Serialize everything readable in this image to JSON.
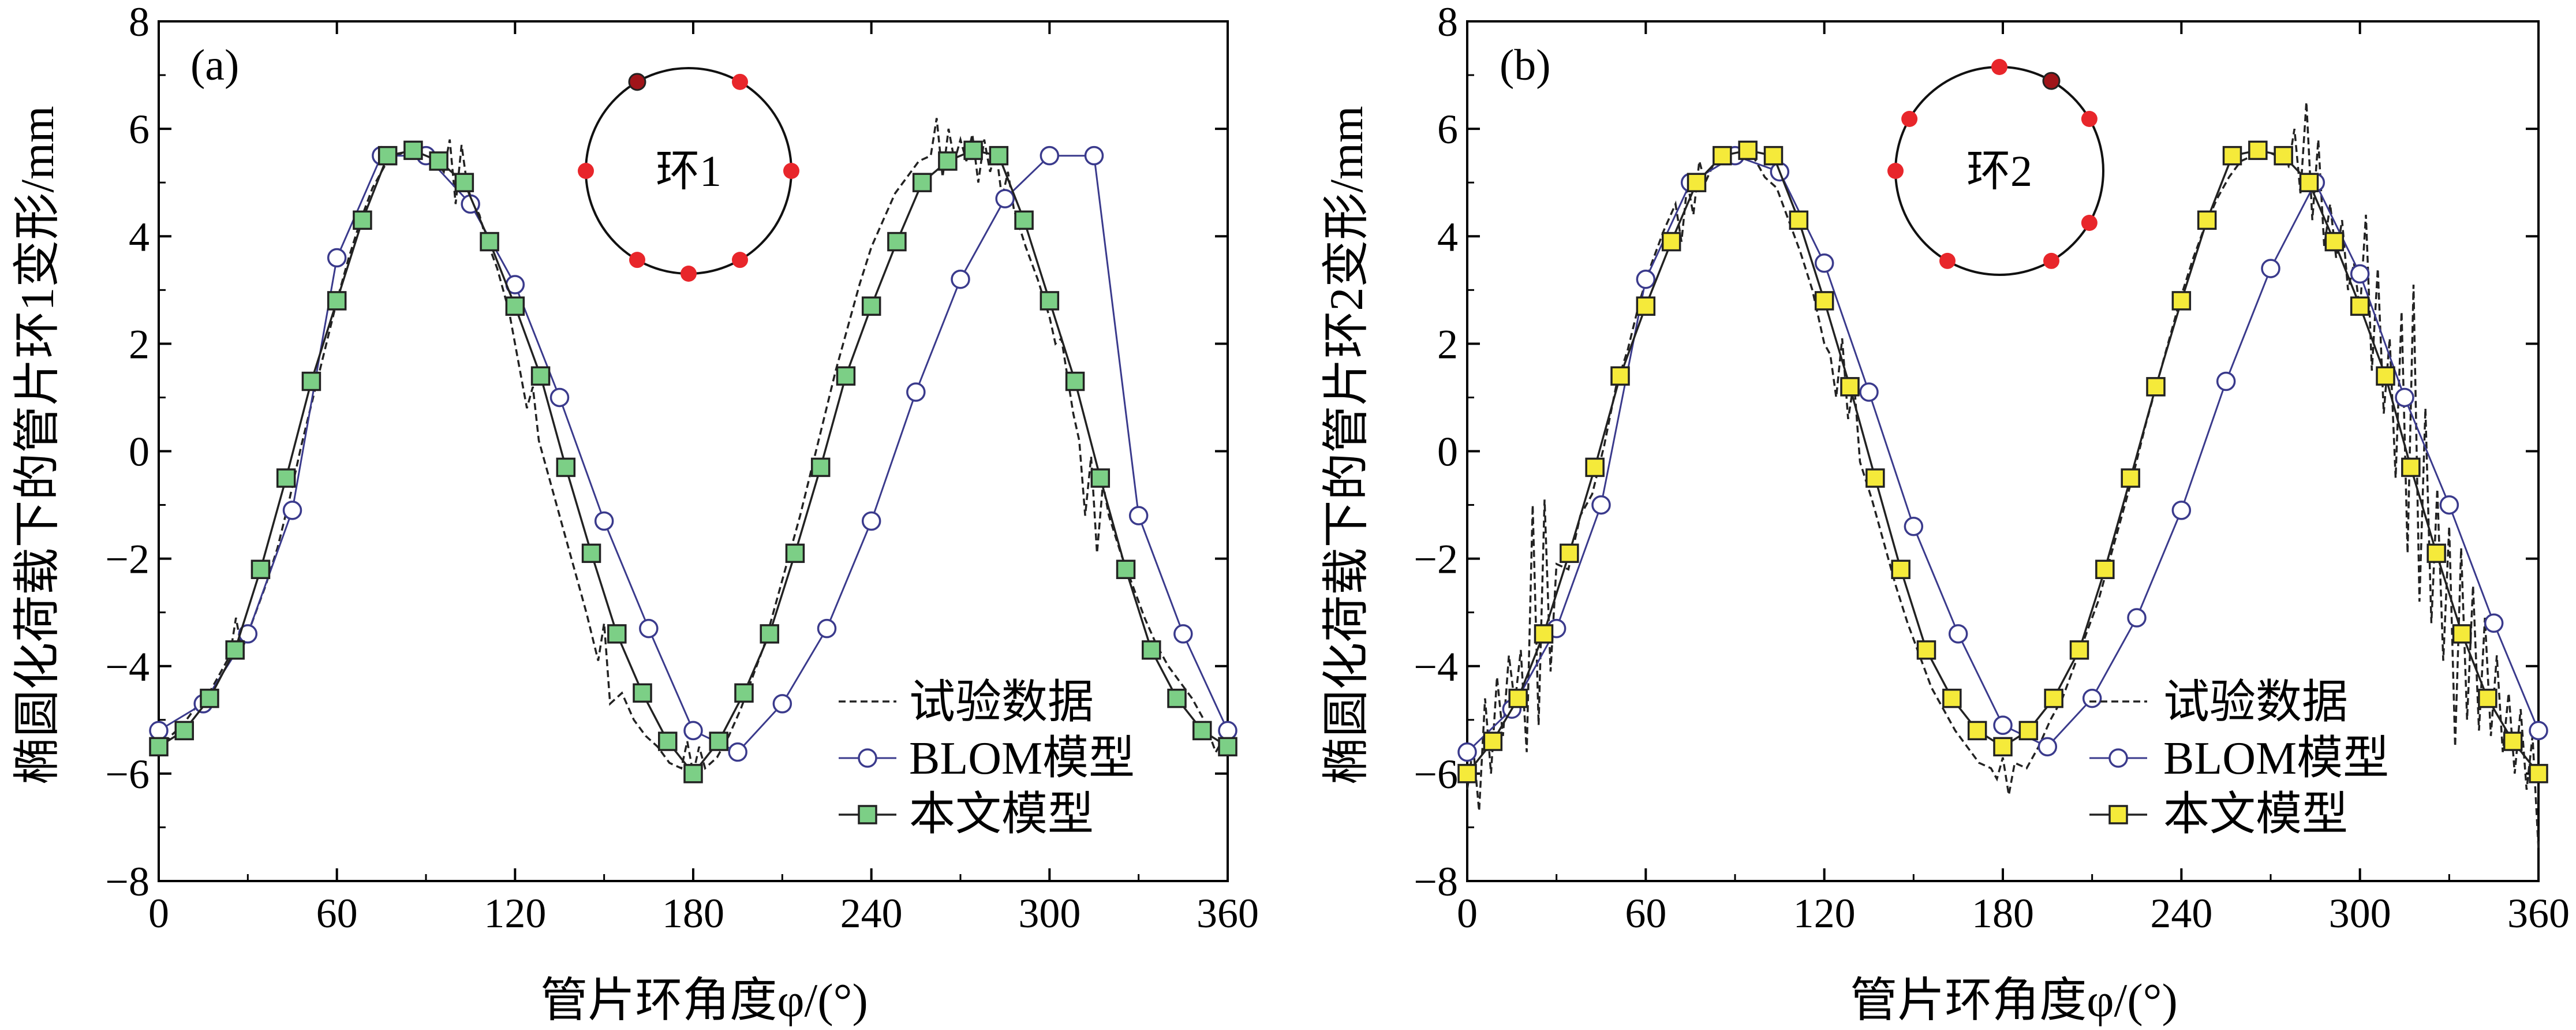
{
  "chart_data": [
    {
      "type": "line",
      "panel_label": "(a)",
      "xlabel": "管片环角度φ/(°)",
      "ylabel": "椭圆化荷载下的管片环1变形/mm",
      "xlim": [
        0,
        360
      ],
      "ylim": [
        -8,
        8
      ],
      "xticks": [
        0,
        60,
        120,
        180,
        240,
        300,
        360
      ],
      "yticks": [
        -8,
        -6,
        -4,
        -2,
        0,
        2,
        4,
        6,
        8
      ],
      "xtick_labels": [
        "0",
        "60",
        "120",
        "180",
        "240",
        "300",
        "360"
      ],
      "ytick_labels": [
        "−8",
        "−6",
        "−4",
        "−2",
        "0",
        "2",
        "4",
        "6",
        "8"
      ],
      "inset": {
        "label": "环1",
        "marker_color": "#e8262b",
        "highlight_color": "#a01419"
      },
      "legend": [
        "试验数据",
        "BLOM模型",
        "本文模型"
      ],
      "series": [
        {
          "name": "试验数据",
          "style": "dashed",
          "x": [
            0,
            4,
            8,
            12,
            16,
            20,
            24,
            26,
            28,
            32,
            36,
            40,
            44,
            48,
            52,
            56,
            60,
            64,
            68,
            72,
            76,
            80,
            84,
            88,
            92,
            96,
            98,
            100,
            102,
            104,
            106,
            108,
            110,
            114,
            118,
            122,
            124,
            126,
            128,
            132,
            136,
            140,
            144,
            148,
            150,
            152,
            156,
            160,
            164,
            168,
            172,
            176,
            178,
            180,
            182,
            184,
            188,
            192,
            196,
            200,
            204,
            208,
            212,
            216,
            220,
            224,
            228,
            232,
            236,
            240,
            244,
            248,
            252,
            256,
            260,
            262,
            264,
            266,
            268,
            270,
            272,
            274,
            276,
            278,
            280,
            282,
            284,
            286,
            288,
            292,
            296,
            300,
            302,
            304,
            306,
            308,
            310,
            312,
            314,
            316,
            318,
            320,
            324,
            328,
            332,
            336,
            340,
            344,
            348,
            352,
            356,
            360
          ],
          "values": [
            -5.6,
            -5.3,
            -5.1,
            -4.8,
            -4.6,
            -4.2,
            -3.8,
            -3.1,
            -3.7,
            -3.1,
            -2.5,
            -1.8,
            -0.9,
            0.1,
            1.0,
            1.9,
            2.8,
            3.6,
            4.3,
            4.9,
            5.3,
            5.5,
            5.6,
            5.6,
            5.5,
            5.2,
            5.8,
            4.6,
            5.7,
            4.9,
            4.6,
            4.4,
            4.0,
            3.4,
            2.6,
            1.4,
            0.8,
            1.2,
            0.2,
            -0.6,
            -1.4,
            -2.2,
            -3.0,
            -3.9,
            -3.2,
            -4.7,
            -4.5,
            -5.0,
            -5.3,
            -5.5,
            -5.8,
            -5.9,
            -5.4,
            -6.0,
            -5.5,
            -5.9,
            -5.7,
            -5.3,
            -4.8,
            -4.2,
            -3.6,
            -2.8,
            -2.0,
            -1.2,
            -0.3,
            0.6,
            1.5,
            2.3,
            3.1,
            3.8,
            4.3,
            4.8,
            5.1,
            5.4,
            5.5,
            6.2,
            5.1,
            6.0,
            5.4,
            5.8,
            5.4,
            5.9,
            5.0,
            5.8,
            5.2,
            5.6,
            4.7,
            5.2,
            4.5,
            3.8,
            3.2,
            2.5,
            2.0,
            2.1,
            1.4,
            0.7,
            0.2,
            -1.2,
            -0.1,
            -1.9,
            -0.6,
            -1.2,
            -1.9,
            -2.5,
            -3.1,
            -3.6,
            -4.0,
            -4.3,
            -4.6,
            -5.0,
            -5.6,
            -5.2
          ]
        },
        {
          "name": "BLOM模型",
          "style": "circle",
          "color": "#3a3a8c",
          "x": [
            0,
            15,
            30,
            45,
            60,
            75,
            90,
            105,
            120,
            135,
            150,
            165,
            180,
            195,
            210,
            225,
            240,
            255,
            270,
            285,
            300,
            315,
            330,
            345,
            360
          ],
          "values": [
            -5.2,
            -4.7,
            -3.4,
            -1.1,
            3.6,
            5.5,
            5.5,
            4.6,
            3.1,
            1.0,
            -1.3,
            -3.3,
            -5.2,
            -5.6,
            -4.7,
            -3.3,
            -1.3,
            1.1,
            3.2,
            4.7,
            5.5,
            5.5,
            -1.2,
            -3.4,
            -5.2
          ]
        },
        {
          "name": "本文模型",
          "style": "square",
          "color": "#7ccf86",
          "x": [
            0,
            8.6,
            17.1,
            25.7,
            34.3,
            42.9,
            51.4,
            60,
            68.6,
            77.1,
            85.7,
            94.3,
            102.9,
            111.4,
            120,
            128.6,
            137.1,
            145.7,
            154.3,
            162.9,
            171.4,
            180,
            188.6,
            197.1,
            205.7,
            214.3,
            222.9,
            231.4,
            240,
            248.6,
            257.1,
            265.7,
            274.3,
            282.9,
            291.4,
            300,
            308.6,
            317.1,
            325.7,
            334.3,
            342.9,
            351.4,
            360
          ],
          "values": [
            -5.5,
            -5.2,
            -4.6,
            -3.7,
            -2.2,
            -0.5,
            1.3,
            2.8,
            4.3,
            5.5,
            5.6,
            5.4,
            5.0,
            3.9,
            2.7,
            1.4,
            -0.3,
            -1.9,
            -3.4,
            -4.5,
            -5.4,
            -6.0,
            -5.4,
            -4.5,
            -3.4,
            -1.9,
            -0.3,
            1.4,
            2.7,
            3.9,
            5.0,
            5.4,
            5.6,
            5.5,
            4.3,
            2.8,
            1.3,
            -0.5,
            -2.2,
            -3.7,
            -4.6,
            -5.2,
            -5.5
          ]
        }
      ]
    },
    {
      "type": "line",
      "panel_label": "(b)",
      "xlabel": "管片环角度φ/(°)",
      "ylabel": "椭圆化荷载下的管片环2变形/mm",
      "xlim": [
        0,
        360
      ],
      "ylim": [
        -8,
        8
      ],
      "xticks": [
        0,
        60,
        120,
        180,
        240,
        300,
        360
      ],
      "yticks": [
        -8,
        -6,
        -4,
        -2,
        0,
        2,
        4,
        6,
        8
      ],
      "xtick_labels": [
        "0",
        "60",
        "120",
        "180",
        "240",
        "300",
        "360"
      ],
      "ytick_labels": [
        "−8",
        "−6",
        "−4",
        "−2",
        "0",
        "2",
        "4",
        "6",
        "8"
      ],
      "inset": {
        "label": "环2",
        "marker_color": "#e8262b",
        "highlight_color": "#a01419"
      },
      "legend": [
        "试验数据",
        "BLOM模型",
        "本文模型"
      ],
      "series": [
        {
          "name": "试验数据",
          "style": "dashed",
          "x": [
            0,
            2,
            4,
            6,
            8,
            10,
            12,
            14,
            16,
            18,
            20,
            22,
            24,
            26,
            28,
            30,
            34,
            38,
            42,
            46,
            50,
            54,
            58,
            62,
            66,
            70,
            72,
            74,
            76,
            78,
            80,
            84,
            88,
            92,
            96,
            100,
            104,
            108,
            112,
            116,
            120,
            122,
            124,
            126,
            128,
            130,
            132,
            136,
            140,
            144,
            148,
            152,
            156,
            160,
            164,
            168,
            172,
            176,
            178,
            180,
            182,
            184,
            188,
            192,
            196,
            200,
            204,
            208,
            212,
            216,
            220,
            224,
            228,
            232,
            236,
            240,
            244,
            248,
            252,
            256,
            260,
            264,
            268,
            272,
            276,
            278,
            280,
            282,
            284,
            286,
            288,
            290,
            292,
            294,
            296,
            298,
            300,
            302,
            304,
            306,
            308,
            310,
            312,
            314,
            316,
            318,
            320,
            322,
            324,
            326,
            328,
            330,
            332,
            334,
            336,
            338,
            340,
            342,
            344,
            346,
            348,
            350,
            352,
            354,
            356,
            358,
            360
          ],
          "values": [
            -6.3,
            -5.5,
            -6.7,
            -4.6,
            -6.0,
            -4.2,
            -5.3,
            -3.8,
            -4.7,
            -3.7,
            -5.6,
            -1.0,
            -5.1,
            -0.9,
            -4.1,
            -2.1,
            -2.2,
            -1.2,
            -0.8,
            0.1,
            1.2,
            1.9,
            2.8,
            3.5,
            4.1,
            4.6,
            3.9,
            5.0,
            4.4,
            5.4,
            5.0,
            5.5,
            5.6,
            5.5,
            5.5,
            5.1,
            4.9,
            4.3,
            3.7,
            3.0,
            2.0,
            1.8,
            1.0,
            2.1,
            0.6,
            1.3,
            -0.2,
            -0.9,
            -1.7,
            -2.5,
            -3.2,
            -3.8,
            -4.4,
            -4.8,
            -5.2,
            -5.5,
            -5.8,
            -5.9,
            -6.1,
            -5.7,
            -6.4,
            -5.8,
            -5.9,
            -5.5,
            -5.0,
            -4.6,
            -4.0,
            -3.4,
            -2.8,
            -2.0,
            -1.2,
            -0.4,
            0.5,
            1.3,
            2.1,
            2.9,
            3.6,
            4.2,
            4.7,
            5.1,
            5.4,
            5.5,
            5.6,
            5.5,
            5.3,
            6.0,
            4.8,
            6.5,
            4.3,
            5.8,
            3.8,
            4.6,
            3.6,
            4.3,
            3.0,
            3.5,
            2.6,
            4.4,
            1.5,
            3.4,
            0.7,
            2.1,
            -0.5,
            2.6,
            -1.9,
            3.1,
            -2.8,
            0.8,
            -3.2,
            -0.7,
            -3.9,
            -1.4,
            -5.5,
            -1.8,
            -5.0,
            -2.5,
            -5.2,
            -3.1,
            -5.3,
            -3.8,
            -5.6,
            -4.5,
            -6.0,
            -4.8,
            -6.3,
            -5.3,
            -7.4
          ]
        },
        {
          "name": "BLOM模型",
          "style": "circle",
          "color": "#3a3a8c",
          "x": [
            0,
            15,
            30,
            45,
            60,
            75,
            90,
            105,
            120,
            135,
            150,
            165,
            180,
            195,
            210,
            225,
            240,
            255,
            270,
            285,
            300,
            315,
            330,
            345,
            360
          ],
          "values": [
            -5.6,
            -4.8,
            -3.3,
            -1.0,
            3.2,
            5.0,
            5.5,
            5.2,
            3.5,
            1.1,
            -1.4,
            -3.4,
            -5.1,
            -5.5,
            -4.6,
            -3.1,
            -1.1,
            1.3,
            3.4,
            5.0,
            3.3,
            1.0,
            -1.0,
            -3.2,
            -5.2
          ]
        },
        {
          "name": "本文模型",
          "style": "square",
          "color": "#f5ea3a",
          "x": [
            0,
            8.6,
            17.1,
            25.7,
            34.3,
            42.9,
            51.4,
            60,
            68.6,
            77.1,
            85.7,
            94.3,
            102.9,
            111.4,
            120,
            128.6,
            137.1,
            145.7,
            154.3,
            162.9,
            171.4,
            180,
            188.6,
            197.1,
            205.7,
            214.3,
            222.9,
            231.4,
            240,
            248.6,
            257.1,
            265.7,
            274.3,
            282.9,
            291.4,
            300,
            308.6,
            317.1,
            325.7,
            334.3,
            342.9,
            351.4,
            360
          ],
          "values": [
            -6.0,
            -5.4,
            -4.6,
            -3.4,
            -1.9,
            -0.3,
            1.4,
            2.7,
            3.9,
            5.0,
            5.5,
            5.6,
            5.5,
            4.3,
            2.8,
            1.2,
            -0.5,
            -2.2,
            -3.7,
            -4.6,
            -5.2,
            -5.5,
            -5.2,
            -4.6,
            -3.7,
            -2.2,
            -0.5,
            1.2,
            2.8,
            4.3,
            5.5,
            5.6,
            5.5,
            5.0,
            3.9,
            2.7,
            1.4,
            -0.3,
            -1.9,
            -3.4,
            -4.6,
            -5.4,
            -6.0
          ]
        }
      ]
    }
  ]
}
